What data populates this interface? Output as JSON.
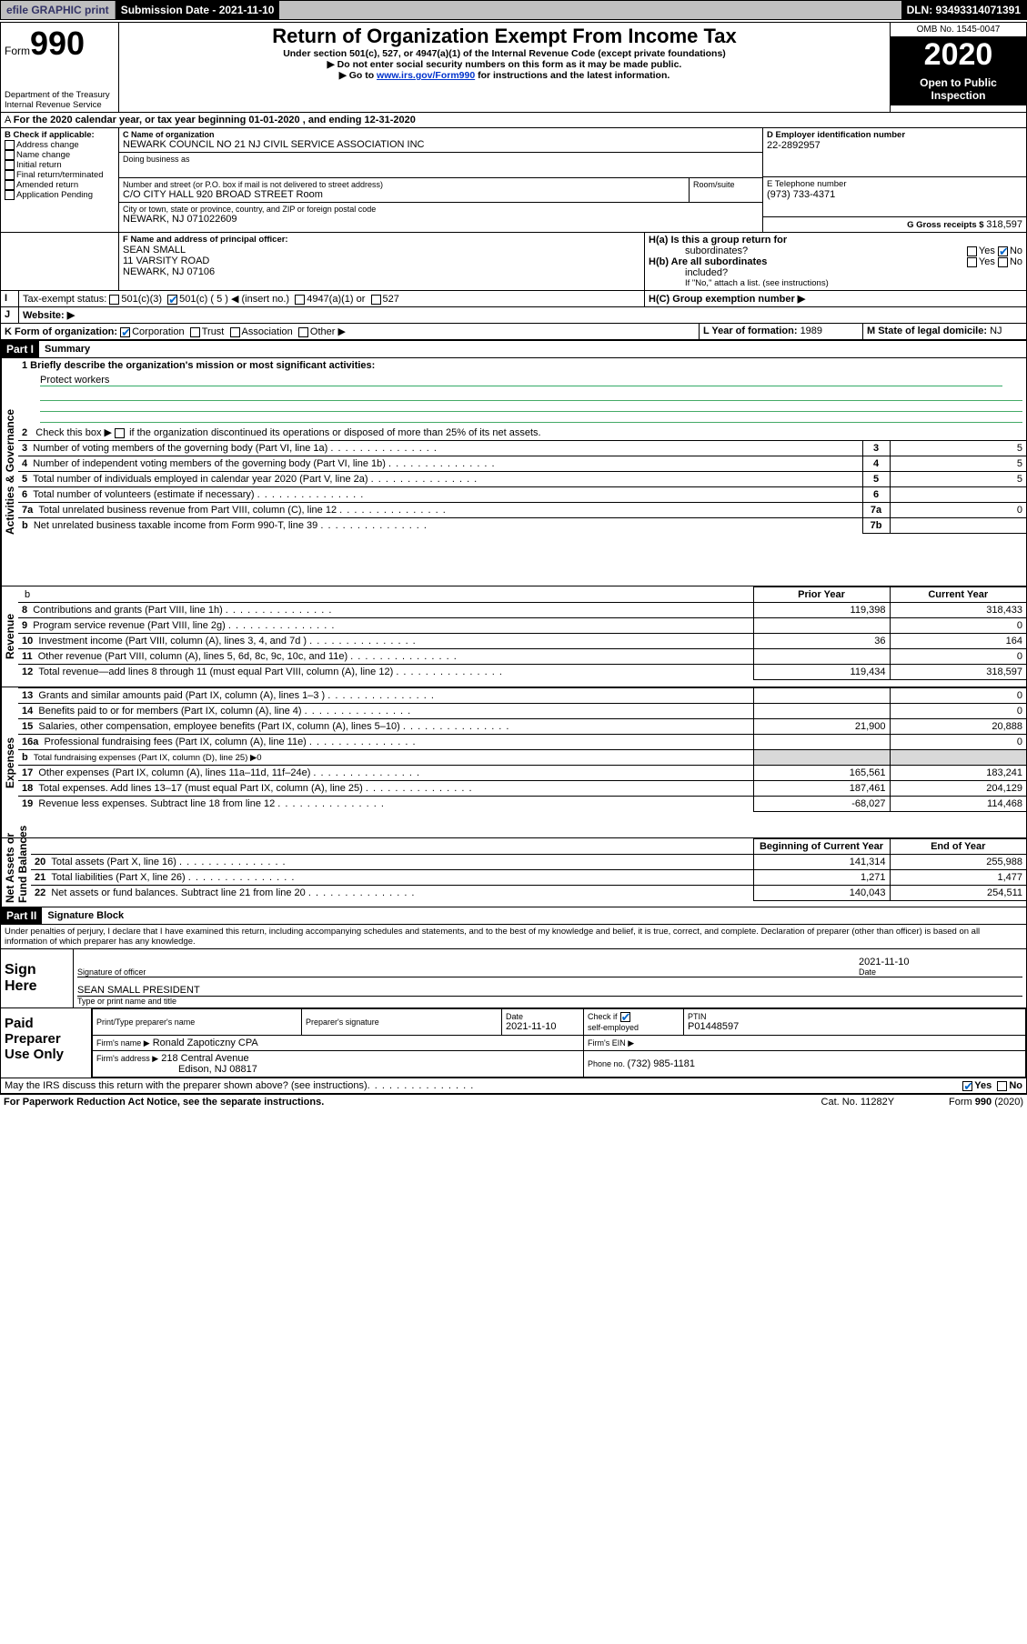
{
  "header_bar": {
    "efile": "efile GRAPHIC print",
    "sub_date_label": "Submission Date - 2021-11-10",
    "dln": "DLN: 93493314071391"
  },
  "title_block": {
    "form": "Form",
    "num": "990",
    "title": "Return of Organization Exempt From Income Tax",
    "line1": "Under section 501(c), 527, or 4947(a)(1) of the Internal Revenue Code (except private foundations)",
    "line2": "Do not enter social security numbers on this form as it may be made public.",
    "line3a": "Go to ",
    "line3link": "www.irs.gov/Form990",
    "line3b": " for instructions and the latest information.",
    "dept": "Department of the Treasury",
    "irs": "Internal Revenue Service",
    "omb": "OMB No. 1545-0047",
    "year": "2020",
    "open": "Open to Public",
    "insp": "Inspection"
  },
  "A": {
    "text": "For the 2020 calendar year, or tax year beginning 01-01-2020     , and ending 12-31-2020"
  },
  "B": {
    "label": "B Check if applicable:",
    "items": [
      "Address change",
      "Name change",
      "Initial return",
      "Final return/terminated",
      "Amended return",
      "Application Pending"
    ]
  },
  "C": {
    "name_label": "C Name of organization",
    "name": "NEWARK COUNCIL NO 21 NJ CIVIL SERVICE ASSOCIATION INC",
    "dba": "Doing business as",
    "addr_label": "Number and street (or P.O. box if mail is not delivered to street address)",
    "room": "Room/suite",
    "addr": "C/O CITY HALL 920 BROAD STREET Room",
    "city_label": "City or town, state or province, country, and ZIP or foreign postal code",
    "city": "NEWARK, NJ  071022609"
  },
  "D": {
    "label": "D Employer identification number",
    "val": "22-2892957"
  },
  "E": {
    "label": "E Telephone number",
    "val": "(973) 733-4371"
  },
  "G": {
    "label": "G Gross receipts $ ",
    "val": "318,597"
  },
  "F": {
    "label": "F  Name and address of principal officer:",
    "name": "SEAN SMALL",
    "addr1": "11 VARSITY ROAD",
    "addr2": "NEWARK, NJ  07106"
  },
  "H": {
    "a": "H(a)  Is this a group return for",
    "a2": "subordinates?",
    "yes": "Yes",
    "no": "No",
    "b": "H(b)  Are all subordinates",
    "b2": "included?",
    "note": "If \"No,\" attach a list. (see instructions)",
    "c": "H(C)  Group exemption number ▶"
  },
  "I": {
    "label": "Tax-exempt status:",
    "c3": "501(c)(3)",
    "c": "501(c) ( 5 ) ◀ (insert no.)",
    "a1": "4947(a)(1) or",
    "s527": "527"
  },
  "J": {
    "label": "Website: ▶"
  },
  "K": {
    "label": "K Form of organization:",
    "corp": "Corporation",
    "trust": "Trust",
    "assoc": "Association",
    "other": "Other ▶"
  },
  "L": {
    "label": "L Year of formation: ",
    "val": "1989"
  },
  "M": {
    "label": "M State of legal domicile: ",
    "val": "NJ"
  },
  "part1": {
    "hdr": "Part I",
    "title": "Summary"
  },
  "summary": {
    "l1": "1  Briefly describe the organization's mission or most significant activities:",
    "mission": "Protect workers",
    "l2": "2    Check this box ▶        if the organization discontinued its operations or disposed of more than 25% of its net assets.",
    "rows_top": [
      {
        "n": "3",
        "t": "Number of voting members of the governing body (Part VI, line 1a)",
        "rn": "3",
        "v": "5"
      },
      {
        "n": "4",
        "t": "Number of independent voting members of the governing body (Part VI, line 1b)",
        "rn": "4",
        "v": "5"
      },
      {
        "n": "5",
        "t": "Total number of individuals employed in calendar year 2020 (Part V, line 2a)",
        "rn": "5",
        "v": "5"
      },
      {
        "n": "6",
        "t": "Total number of volunteers (estimate if necessary)",
        "rn": "6",
        "v": ""
      },
      {
        "n": "7a",
        "t": "Total unrelated business revenue from Part VIII, column (C), line 12",
        "rn": "7a",
        "v": "0"
      },
      {
        "n": "b",
        "t": "Net unrelated business taxable income from Form 990-T, line 39",
        "rn": "7b",
        "v": ""
      }
    ],
    "col_prior": "Prior Year",
    "col_curr": "Current Year",
    "rev": [
      {
        "n": "8",
        "t": "Contributions and grants (Part VIII, line 1h)",
        "p": "119,398",
        "c": "318,433"
      },
      {
        "n": "9",
        "t": "Program service revenue (Part VIII, line 2g)",
        "p": "",
        "c": "0"
      },
      {
        "n": "10",
        "t": "Investment income (Part VIII, column (A), lines 3, 4, and 7d )",
        "p": "36",
        "c": "164"
      },
      {
        "n": "11",
        "t": "Other revenue (Part VIII, column (A), lines 5, 6d, 8c, 9c, 10c, and 11e)",
        "p": "",
        "c": "0"
      },
      {
        "n": "12",
        "t": "Total revenue—add lines 8 through 11 (must equal Part VIII, column (A), line 12)",
        "p": "119,434",
        "c": "318,597"
      }
    ],
    "exp": [
      {
        "n": "13",
        "t": "Grants and similar amounts paid (Part IX, column (A), lines 1–3 )",
        "p": "",
        "c": "0"
      },
      {
        "n": "14",
        "t": "Benefits paid to or for members (Part IX, column (A), line 4)",
        "p": "",
        "c": "0"
      },
      {
        "n": "15",
        "t": "Salaries, other compensation, employee benefits (Part IX, column (A), lines 5–10)",
        "p": "21,900",
        "c": "20,888"
      },
      {
        "n": "16a",
        "t": "Professional fundraising fees (Part IX, column (A), line 11e)",
        "p": "",
        "c": "0"
      },
      {
        "n": "b",
        "t": "Total fundraising expenses (Part IX, column (D), line 25) ▶0",
        "p": "GRAY",
        "c": "GRAY"
      },
      {
        "n": "17",
        "t": "Other expenses (Part IX, column (A), lines 11a–11d, 11f–24e)",
        "p": "165,561",
        "c": "183,241"
      },
      {
        "n": "18",
        "t": "Total expenses. Add lines 13–17 (must equal Part IX, column (A), line 25)",
        "p": "187,461",
        "c": "204,129"
      },
      {
        "n": "19",
        "t": "Revenue less expenses. Subtract line 18 from line 12",
        "p": "-68,027",
        "c": "114,468"
      }
    ],
    "col_beg": "Beginning of Current Year",
    "col_end": "End of Year",
    "net": [
      {
        "n": "20",
        "t": "Total assets (Part X, line 16)",
        "p": "141,314",
        "c": "255,988"
      },
      {
        "n": "21",
        "t": "Total liabilities (Part X, line 26)",
        "p": "1,271",
        "c": "1,477"
      },
      {
        "n": "22",
        "t": "Net assets or fund balances. Subtract line 21 from line 20",
        "p": "140,043",
        "c": "254,511"
      }
    ],
    "side_labels": {
      "ag": "Activities & Governance",
      "rev": "Revenue",
      "exp": "Expenses",
      "net": "Net Assets or\nFund Balances"
    }
  },
  "part2": {
    "hdr": "Part II",
    "title": "Signature Block",
    "decl": "Under penalties of perjury, I declare that I have examined this return, including accompanying schedules and statements, and to the best of my knowledge and belief, it is true, correct, and complete. Declaration of preparer (other than officer) is based on all information of which preparer has any knowledge."
  },
  "sign": {
    "here": "Sign Here",
    "sig_officer": "Signature of officer",
    "date": "Date",
    "date_val": "2021-11-10",
    "name": "SEAN SMALL  PRESIDENT",
    "type": "Type or print name and title"
  },
  "paid": {
    "label": "Paid Preparer Use Only",
    "pt_name": "Print/Type preparer's name",
    "pt_sig": "Preparer's signature",
    "pt_date": "Date",
    "pt_date_val": "2021-11-10",
    "chk": "Check          if",
    "self": "self-employed",
    "ptin": "PTIN",
    "ptin_val": "P01448597",
    "firm_name_l": "Firm's name    ▶",
    "firm_name": "Ronald Zapoticzny CPA",
    "firm_ein": "Firm's EIN ▶",
    "firm_addr_l": "Firm's address ▶",
    "firm_addr": "218 Central Avenue",
    "firm_city": "Edison, NJ  08817",
    "phone_l": "Phone no. ",
    "phone": "(732) 985-1181",
    "irs_q": "May the IRS discuss this return with the preparer shown above? (see instructions)"
  },
  "footer": {
    "pra": "For Paperwork Reduction Act Notice, see the separate instructions.",
    "cat": "Cat. No. 11282Y",
    "form": "Form 990 (2020)"
  }
}
